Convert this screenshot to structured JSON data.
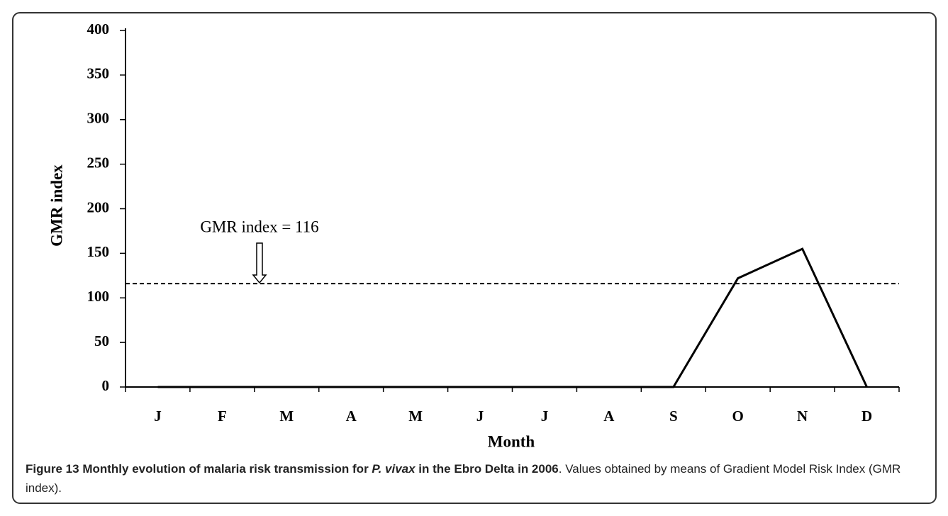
{
  "chart_data": {
    "type": "line",
    "y_label": "GMR index",
    "x_label": "Month",
    "categories": [
      "J",
      "F",
      "M",
      "A",
      "M",
      "J",
      "J",
      "A",
      "S",
      "O",
      "N",
      "D"
    ],
    "series": [
      {
        "name": "GMR index",
        "color": "#000000",
        "values": [
          0,
          0,
          0,
          0,
          0,
          0,
          0,
          0,
          0,
          122,
          155,
          0
        ]
      }
    ],
    "ylim": [
      0,
      400
    ],
    "yticks": [
      0,
      50,
      100,
      150,
      200,
      250,
      300,
      350,
      400
    ],
    "threshold": {
      "value": 116,
      "label": "GMR index = 116"
    }
  },
  "caption": {
    "label": "Figure 13",
    "title_before": "Monthly evolution of malaria risk transmission for",
    "species": "P. vivax",
    "title_after": "in the Ebro Delta in 2006",
    "text": ". Values obtained by means of Gradient Model Risk Index (GMR index)."
  }
}
